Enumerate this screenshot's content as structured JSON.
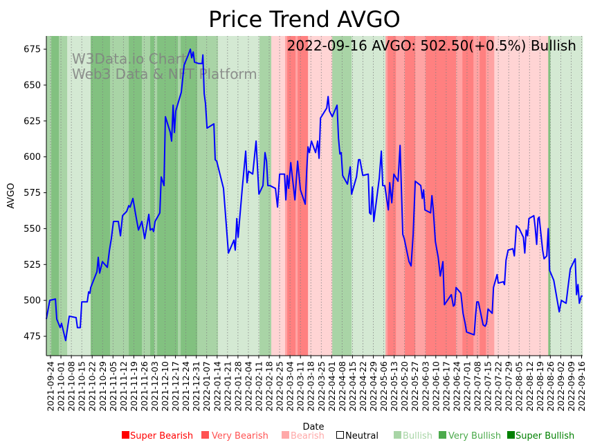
{
  "chart_data": {
    "type": "line",
    "title": "Price Trend AVGO",
    "xlabel": "Date",
    "ylabel": "AVGO",
    "x_unit": "days since 2021-09-24",
    "xlim": [
      -2.8,
      357.7
    ],
    "ylim": [
      461.5,
      684.2
    ],
    "yticks": [
      475,
      500,
      525,
      550,
      575,
      600,
      625,
      650,
      675
    ],
    "xtick_step_days": 7,
    "xtick_labels": [
      "2021-09-24",
      "2021-10-01",
      "2021-10-08",
      "2021-10-15",
      "2021-10-22",
      "2021-10-29",
      "2021-11-05",
      "2021-11-12",
      "2021-11-19",
      "2021-11-26",
      "2021-12-03",
      "2021-12-10",
      "2021-12-17",
      "2021-12-24",
      "2021-12-31",
      "2022-01-07",
      "2022-01-14",
      "2022-01-21",
      "2022-01-28",
      "2022-02-04",
      "2022-02-11",
      "2022-02-18",
      "2022-02-25",
      "2022-03-04",
      "2022-03-11",
      "2022-03-18",
      "2022-03-25",
      "2022-04-01",
      "2022-04-08",
      "2022-04-15",
      "2022-04-22",
      "2022-04-29",
      "2022-05-06",
      "2022-05-13",
      "2022-05-20",
      "2022-05-27",
      "2022-06-03",
      "2022-06-10",
      "2022-06-17",
      "2022-06-24",
      "2022-07-01",
      "2022-07-08",
      "2022-07-15",
      "2022-07-22",
      "2022-07-29",
      "2022-08-05",
      "2022-08-12",
      "2022-08-19",
      "2022-08-26",
      "2022-09-02",
      "2022-09-09",
      "2022-09-16"
    ],
    "grid": "vertical dotted",
    "annotation": "2022-09-16 AVGO: 502.50(+0.5%) Bullish",
    "watermark": [
      "W3Data.io Chart",
      "Web3 Data & NFT Platform"
    ],
    "line_color": "#0000ff",
    "series": [
      {
        "name": "AVGO",
        "points": [
          [
            -2.8,
            487
          ],
          [
            -0.5,
            500
          ],
          [
            3.3,
            501
          ],
          [
            4.2,
            487
          ],
          [
            6.5,
            481
          ],
          [
            7.4,
            484
          ],
          [
            10.2,
            472
          ],
          [
            12.6,
            489
          ],
          [
            17.2,
            488
          ],
          [
            18.1,
            481
          ],
          [
            20.0,
            481
          ],
          [
            21.0,
            499
          ],
          [
            24.7,
            499
          ],
          [
            25.6,
            506
          ],
          [
            26.5,
            505
          ],
          [
            27.0,
            509
          ],
          [
            31.2,
            520
          ],
          [
            32.1,
            530
          ],
          [
            33.0,
            519
          ],
          [
            34.9,
            527
          ],
          [
            38.2,
            523
          ],
          [
            39.6,
            535
          ],
          [
            40.9,
            543
          ],
          [
            42.3,
            555
          ],
          [
            45.6,
            555
          ],
          [
            47.0,
            545
          ],
          [
            48.4,
            559
          ],
          [
            51.2,
            562
          ],
          [
            52.6,
            566
          ],
          [
            53.5,
            565
          ],
          [
            55.4,
            571
          ],
          [
            57.2,
            560
          ],
          [
            59.1,
            549
          ],
          [
            61.4,
            555
          ],
          [
            63.3,
            543
          ],
          [
            66.1,
            560
          ],
          [
            67.0,
            549
          ],
          [
            68.4,
            550
          ],
          [
            69.3,
            548
          ],
          [
            70.3,
            555
          ],
          [
            73.5,
            561
          ],
          [
            74.4,
            586
          ],
          [
            76.3,
            580
          ],
          [
            77.2,
            628
          ],
          [
            80.5,
            617
          ],
          [
            81.4,
            611
          ],
          [
            82.4,
            636
          ],
          [
            83.3,
            617
          ],
          [
            84.2,
            632
          ],
          [
            87.9,
            645
          ],
          [
            89.8,
            664
          ],
          [
            92.6,
            671
          ],
          [
            94.0,
            675
          ],
          [
            94.9,
            669
          ],
          [
            95.9,
            673
          ],
          [
            96.8,
            666
          ],
          [
            99.6,
            665
          ],
          [
            101.9,
            665
          ],
          [
            102.4,
            671
          ],
          [
            103.3,
            644
          ],
          [
            104.2,
            637
          ],
          [
            105.2,
            620
          ],
          [
            109.8,
            623
          ],
          [
            110.7,
            598
          ],
          [
            111.7,
            597
          ],
          [
            116.3,
            578
          ],
          [
            119.6,
            533
          ],
          [
            123.3,
            542
          ],
          [
            124.2,
            535
          ],
          [
            125.2,
            557
          ],
          [
            126.1,
            544
          ],
          [
            128.9,
            578
          ],
          [
            131.2,
            604
          ],
          [
            132.1,
            582
          ],
          [
            133.1,
            590
          ],
          [
            135.9,
            588
          ],
          [
            138.2,
            611
          ],
          [
            140.1,
            574
          ],
          [
            142.8,
            580
          ],
          [
            144.2,
            603
          ],
          [
            145.2,
            597
          ],
          [
            146.1,
            580
          ],
          [
            147.5,
            580
          ],
          [
            151.2,
            578
          ],
          [
            152.6,
            565
          ],
          [
            154.0,
            588
          ],
          [
            157.3,
            588
          ],
          [
            158.2,
            570
          ],
          [
            159.1,
            587
          ],
          [
            160.1,
            578
          ],
          [
            161.5,
            596
          ],
          [
            164.3,
            570
          ],
          [
            166.1,
            597
          ],
          [
            168.0,
            577
          ],
          [
            171.2,
            567
          ],
          [
            172.2,
            590
          ],
          [
            173.1,
            607
          ],
          [
            174.0,
            603
          ],
          [
            175.4,
            611
          ],
          [
            178.2,
            603
          ],
          [
            179.6,
            611
          ],
          [
            180.5,
            599
          ],
          [
            181.5,
            627
          ],
          [
            185.7,
            634
          ],
          [
            186.6,
            642
          ],
          [
            187.5,
            632
          ],
          [
            189.4,
            628
          ],
          [
            192.6,
            636
          ],
          [
            193.6,
            613
          ],
          [
            194.5,
            602
          ],
          [
            195.4,
            603
          ],
          [
            196.4,
            587
          ],
          [
            199.6,
            581
          ],
          [
            201.5,
            593
          ],
          [
            202.4,
            574
          ],
          [
            205.7,
            586
          ],
          [
            207.1,
            598
          ],
          [
            208.0,
            598
          ],
          [
            209.9,
            587
          ],
          [
            213.6,
            588
          ],
          [
            214.5,
            561
          ],
          [
            215.4,
            560
          ],
          [
            216.4,
            579
          ],
          [
            217.3,
            555
          ],
          [
            221.0,
            585
          ],
          [
            222.4,
            604
          ],
          [
            223.3,
            580
          ],
          [
            224.7,
            580
          ],
          [
            227.1,
            563
          ],
          [
            228.0,
            582
          ],
          [
            229.4,
            568
          ],
          [
            230.8,
            588
          ],
          [
            233.6,
            583
          ],
          [
            235.0,
            608
          ],
          [
            236.8,
            546
          ],
          [
            237.8,
            543
          ],
          [
            241.0,
            527
          ],
          [
            242.4,
            524
          ],
          [
            243.8,
            546
          ],
          [
            245.2,
            583
          ],
          [
            248.9,
            580
          ],
          [
            249.9,
            571
          ],
          [
            250.8,
            577
          ],
          [
            251.7,
            563
          ],
          [
            255.5,
            561
          ],
          [
            256.4,
            573
          ],
          [
            257.3,
            563
          ],
          [
            258.7,
            541
          ],
          [
            260.6,
            530
          ],
          [
            262.0,
            517
          ],
          [
            263.8,
            527
          ],
          [
            264.8,
            497
          ],
          [
            269.4,
            504
          ],
          [
            270.8,
            496
          ],
          [
            271.7,
            497
          ],
          [
            272.6,
            509
          ],
          [
            275.9,
            505
          ],
          [
            277.3,
            491
          ],
          [
            278.7,
            484
          ],
          [
            279.7,
            478
          ],
          [
            284.8,
            476
          ],
          [
            285.7,
            489
          ],
          [
            286.6,
            499
          ],
          [
            287.6,
            499
          ],
          [
            290.8,
            483
          ],
          [
            292.2,
            482
          ],
          [
            293.1,
            484
          ],
          [
            294.1,
            494
          ],
          [
            296.9,
            491
          ],
          [
            297.8,
            509
          ],
          [
            300.2,
            518
          ],
          [
            301.0,
            512
          ],
          [
            304.3,
            513
          ],
          [
            305.2,
            511
          ],
          [
            306.2,
            528
          ],
          [
            307.6,
            535
          ],
          [
            310.8,
            536
          ],
          [
            311.8,
            531
          ],
          [
            313.2,
            552
          ],
          [
            315.1,
            550
          ],
          [
            317.9,
            544
          ],
          [
            318.8,
            533
          ],
          [
            319.8,
            549
          ],
          [
            320.7,
            545
          ],
          [
            321.6,
            557
          ],
          [
            324.9,
            559
          ],
          [
            325.8,
            551
          ],
          [
            326.8,
            539
          ],
          [
            327.7,
            557
          ],
          [
            328.5,
            558
          ],
          [
            330.8,
            535
          ],
          [
            331.8,
            529
          ],
          [
            333.6,
            531
          ],
          [
            334.6,
            550
          ],
          [
            335.5,
            521
          ],
          [
            338.3,
            514
          ],
          [
            342.0,
            492
          ],
          [
            343.4,
            500
          ],
          [
            346.6,
            498
          ],
          [
            348.0,
            510
          ],
          [
            349.4,
            522
          ],
          [
            352.7,
            529
          ],
          [
            353.6,
            504
          ],
          [
            354.6,
            511
          ],
          [
            355.5,
            498
          ],
          [
            356.8,
            503
          ],
          [
            357.7,
            503
          ]
        ]
      }
    ],
    "sentiment_bands": [
      [
        -2.8,
        0.5,
        2
      ],
      [
        0.5,
        5.6,
        3
      ],
      [
        5.6,
        11.2,
        2
      ],
      [
        11.2,
        27.0,
        1
      ],
      [
        27.0,
        40.0,
        3
      ],
      [
        40.0,
        49.8,
        2
      ],
      [
        49.8,
        52.6,
        2
      ],
      [
        52.6,
        61.4,
        3
      ],
      [
        61.4,
        67.0,
        2
      ],
      [
        67.0,
        69.8,
        3
      ],
      [
        69.8,
        71.7,
        2
      ],
      [
        71.7,
        85.6,
        3
      ],
      [
        85.6,
        87.5,
        2
      ],
      [
        87.5,
        98.6,
        3
      ],
      [
        98.6,
        112.6,
        2
      ],
      [
        112.6,
        140.5,
        1
      ],
      [
        140.5,
        148.4,
        2
      ],
      [
        148.4,
        157.7,
        -1
      ],
      [
        157.7,
        159.1,
        -2
      ],
      [
        159.1,
        164.7,
        -3
      ],
      [
        164.7,
        166.1,
        -2
      ],
      [
        166.1,
        173.1,
        -3
      ],
      [
        173.1,
        189.4,
        -1
      ],
      [
        189.4,
        202.4,
        2
      ],
      [
        202.4,
        225.2,
        1
      ],
      [
        225.2,
        226.6,
        -2
      ],
      [
        226.6,
        232.2,
        -3
      ],
      [
        232.2,
        238.2,
        -2
      ],
      [
        238.2,
        245.2,
        -3
      ],
      [
        245.2,
        252.2,
        -2
      ],
      [
        252.2,
        272.6,
        -3
      ],
      [
        272.6,
        276.9,
        -2
      ],
      [
        276.9,
        284.3,
        -3
      ],
      [
        284.3,
        288.5,
        -2
      ],
      [
        288.5,
        292.7,
        -3
      ],
      [
        292.7,
        298.3,
        -2
      ],
      [
        298.3,
        334.6,
        -1
      ],
      [
        334.6,
        336.0,
        3
      ],
      [
        336.0,
        357.7,
        1
      ]
    ],
    "band_colors": {
      "-3": "#ff8080",
      "-2": "#ffa3a3",
      "-1": "#ffd4d4",
      "0": "#ffffff",
      "1": "#d4e9d3",
      "2": "#a9d4a6",
      "3": "#82c180"
    },
    "legend": {
      "placement": "bottom",
      "items": [
        {
          "label": "Super Bearish",
          "color": "#ff0000",
          "text_color": "#ff0000",
          "hollow": false
        },
        {
          "label": "Very Bearish",
          "color": "#ff5252",
          "text_color": "#ff5252",
          "hollow": false
        },
        {
          "label": "Bearish",
          "color": "#ffa8a8",
          "text_color": "#ffa8a8",
          "hollow": false
        },
        {
          "label": "Neutral",
          "color": "#000000",
          "text_color": "#000000",
          "hollow": true
        },
        {
          "label": "Bullish",
          "color": "#a8d5a6",
          "text_color": "#a8d5a6",
          "hollow": false
        },
        {
          "label": "Very Bullish",
          "color": "#4caa4c",
          "text_color": "#4caa4c",
          "hollow": false
        },
        {
          "label": "Super Bullish",
          "color": "#008000",
          "text_color": "#008000",
          "hollow": false
        }
      ]
    }
  }
}
